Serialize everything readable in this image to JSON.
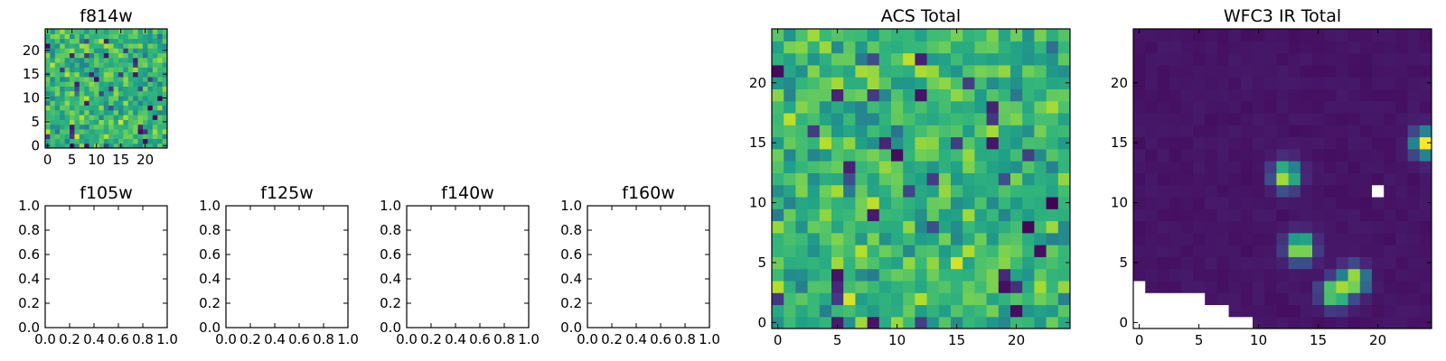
{
  "chart_data": [
    {
      "type": "heatmap",
      "title": "f814w",
      "colormap": "viridis",
      "grid": false,
      "size": [
        25,
        25
      ],
      "xlim": [
        -0.5,
        24.5
      ],
      "ylim": [
        -0.5,
        24.5
      ],
      "x_ticks": [
        0,
        5,
        10,
        15,
        20
      ],
      "y_ticks": [
        0,
        5,
        10,
        15,
        20
      ],
      "x_tick_labels": [
        "0",
        "5",
        "10",
        "15",
        "20"
      ],
      "y_tick_labels": [
        "0",
        "5",
        "10",
        "15",
        "20"
      ],
      "seed": 11,
      "value_range": [
        0,
        1
      ],
      "mean": 0.65,
      "spread": 0.32
    },
    {
      "type": "heatmap",
      "title": "f105w",
      "empty": true,
      "xlim": [
        0,
        1
      ],
      "ylim": [
        0,
        1
      ],
      "x_ticks": [
        0,
        0.2,
        0.4,
        0.6,
        0.8,
        1.0
      ],
      "y_ticks": [
        0,
        0.2,
        0.4,
        0.6,
        0.8,
        1.0
      ],
      "x_tick_labels": [
        "0.0",
        "0.2",
        "0.4",
        "0.6",
        "0.8",
        "1.0"
      ],
      "y_tick_labels": [
        "0.0",
        "0.2",
        "0.4",
        "0.6",
        "0.8",
        "1.0"
      ]
    },
    {
      "type": "heatmap",
      "title": "f125w",
      "empty": true,
      "xlim": [
        0,
        1
      ],
      "ylim": [
        0,
        1
      ],
      "x_ticks": [
        0,
        0.2,
        0.4,
        0.6,
        0.8,
        1.0
      ],
      "y_ticks": [
        0,
        0.2,
        0.4,
        0.6,
        0.8,
        1.0
      ],
      "x_tick_labels": [
        "0.0",
        "0.2",
        "0.4",
        "0.6",
        "0.8",
        "1.0"
      ],
      "y_tick_labels": [
        "0.0",
        "0.2",
        "0.4",
        "0.6",
        "0.8",
        "1.0"
      ]
    },
    {
      "type": "heatmap",
      "title": "f140w",
      "empty": true,
      "xlim": [
        0,
        1
      ],
      "ylim": [
        0,
        1
      ],
      "x_ticks": [
        0,
        0.2,
        0.4,
        0.6,
        0.8,
        1.0
      ],
      "y_ticks": [
        0,
        0.2,
        0.4,
        0.6,
        0.8,
        1.0
      ],
      "x_tick_labels": [
        "0.0",
        "0.2",
        "0.4",
        "0.6",
        "0.8",
        "1.0"
      ],
      "y_tick_labels": [
        "0.0",
        "0.2",
        "0.4",
        "0.6",
        "0.8",
        "1.0"
      ]
    },
    {
      "type": "heatmap",
      "title": "f160w",
      "empty": true,
      "xlim": [
        0,
        1
      ],
      "ylim": [
        0,
        1
      ],
      "x_ticks": [
        0,
        0.2,
        0.4,
        0.6,
        0.8,
        1.0
      ],
      "y_ticks": [
        0,
        0.2,
        0.4,
        0.6,
        0.8,
        1.0
      ],
      "x_tick_labels": [
        "0.0",
        "0.2",
        "0.4",
        "0.6",
        "0.8",
        "1.0"
      ],
      "y_tick_labels": [
        "0.0",
        "0.2",
        "0.4",
        "0.6",
        "0.8",
        "1.0"
      ]
    },
    {
      "type": "heatmap",
      "title": "ACS Total",
      "colormap": "viridis",
      "grid": false,
      "size": [
        25,
        25
      ],
      "xlim": [
        -0.5,
        24.5
      ],
      "ylim": [
        -0.5,
        24.5
      ],
      "x_ticks": [
        0,
        5,
        10,
        15,
        20
      ],
      "y_ticks": [
        0,
        5,
        10,
        15,
        20
      ],
      "x_tick_labels": [
        "0",
        "5",
        "10",
        "15",
        "20"
      ],
      "y_tick_labels": [
        "0",
        "5",
        "10",
        "15",
        "20"
      ],
      "seed": 11,
      "value_range": [
        0,
        1
      ],
      "mean": 0.65,
      "spread": 0.32
    },
    {
      "type": "heatmap",
      "title": "WFC3 IR Total",
      "colormap": "viridis",
      "grid": false,
      "size": [
        25,
        25
      ],
      "xlim": [
        -0.5,
        24.5
      ],
      "ylim": [
        -0.5,
        24.5
      ],
      "x_ticks": [
        0,
        5,
        10,
        15,
        20
      ],
      "y_ticks": [
        0,
        5,
        10,
        15,
        20
      ],
      "x_tick_labels": [
        "0",
        "5",
        "10",
        "15",
        "20"
      ],
      "y_tick_labels": [
        "0",
        "5",
        "10",
        "15",
        "20"
      ],
      "seed": 29,
      "value_range": [
        0,
        1
      ],
      "background_level": 0.04,
      "sources": [
        {
          "x": 24.0,
          "y": 15.0,
          "peak": 1.0
        },
        {
          "x": 12.3,
          "y": 12.3,
          "peak": 0.95
        },
        {
          "x": 13.5,
          "y": 6.3,
          "peak": 1.0
        },
        {
          "x": 16.4,
          "y": 2.5,
          "peak": 0.95
        },
        {
          "x": 18.0,
          "y": 3.6,
          "peak": 0.9
        }
      ],
      "missing_cells": [
        [
          20,
          11
        ],
        [
          0,
          0
        ],
        [
          1,
          0
        ],
        [
          2,
          0
        ],
        [
          3,
          0
        ],
        [
          4,
          0
        ],
        [
          5,
          0
        ],
        [
          6,
          0
        ],
        [
          7,
          0
        ],
        [
          8,
          0
        ],
        [
          9,
          0
        ],
        [
          0,
          1
        ],
        [
          1,
          1
        ],
        [
          2,
          1
        ],
        [
          3,
          1
        ],
        [
          4,
          1
        ],
        [
          5,
          1
        ],
        [
          6,
          1
        ],
        [
          7,
          1
        ],
        [
          0,
          2
        ],
        [
          1,
          2
        ],
        [
          2,
          2
        ],
        [
          3,
          2
        ],
        [
          4,
          2
        ],
        [
          5,
          2
        ],
        [
          0,
          3
        ]
      ]
    }
  ]
}
